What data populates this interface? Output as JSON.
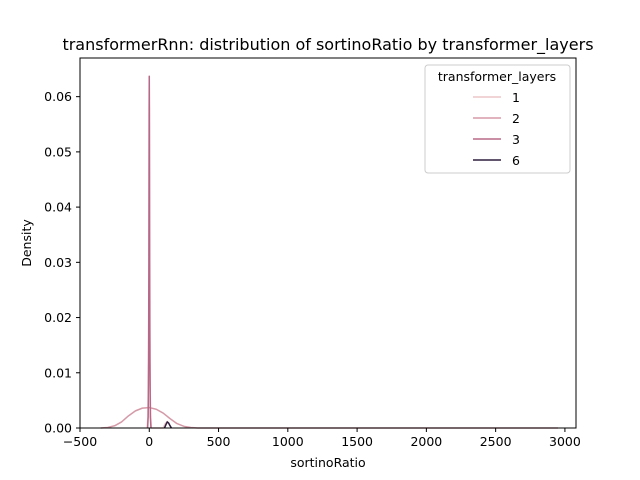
{
  "chart_data": {
    "type": "line",
    "title": "transformerRnn: distribution of sortinoRatio by transformer_layers",
    "xlabel": "sortinoRatio",
    "ylabel": "Density",
    "xlim": [
      -500,
      3080
    ],
    "ylim": [
      0,
      0.067
    ],
    "xticks": [
      -500,
      0,
      500,
      1000,
      1500,
      2000,
      2500,
      3000
    ],
    "xtick_labels": [
      "−500",
      "0",
      "500",
      "1000",
      "1500",
      "2000",
      "2500",
      "3000"
    ],
    "yticks": [
      0,
      0.01,
      0.02,
      0.03,
      0.04,
      0.05,
      0.06
    ],
    "ytick_labels": [
      "0.00",
      "0.01",
      "0.02",
      "0.03",
      "0.04",
      "0.05",
      "0.06"
    ],
    "grid": false,
    "legend": {
      "title": "transformer_layers",
      "placement": "top-right"
    },
    "series": [
      {
        "name": "1",
        "color": "#ebc5c8",
        "x": [
          -15,
          -10,
          -6,
          -3,
          -1,
          0,
          1,
          3,
          6,
          10,
          15,
          100,
          115,
          130,
          145,
          160
        ],
        "y": [
          0,
          0.002,
          0.008,
          0.02,
          0.028,
          0.0305,
          0.028,
          0.02,
          0.008,
          0.002,
          0,
          0,
          0.0008,
          0.0012,
          0.0006,
          0
        ]
      },
      {
        "name": "2",
        "color": "#d59aa8",
        "x": [
          -350,
          -300,
          -250,
          -200,
          -150,
          -100,
          -50,
          0,
          50,
          100,
          150,
          200,
          250,
          300,
          350,
          2950
        ],
        "y": [
          0,
          0.0001,
          0.0004,
          0.0011,
          0.0022,
          0.0031,
          0.0036,
          0.0037,
          0.0034,
          0.0027,
          0.0017,
          0.0008,
          0.0003,
          0.0001,
          0,
          0
        ]
      },
      {
        "name": "3",
        "color": "#b86887",
        "x": [
          -12,
          -8,
          -5,
          -3,
          -2,
          -1,
          0,
          1,
          2,
          3,
          5,
          8,
          12
        ],
        "y": [
          0,
          0.002,
          0.012,
          0.03,
          0.045,
          0.058,
          0.0637,
          0.058,
          0.045,
          0.03,
          0.012,
          0.002,
          0
        ]
      },
      {
        "name": "6",
        "color": "#2d1e3e",
        "x": [
          110,
          120,
          130,
          140,
          150,
          160
        ],
        "y": [
          0,
          0.0006,
          0.0011,
          0.0009,
          0.0004,
          0
        ]
      }
    ]
  }
}
